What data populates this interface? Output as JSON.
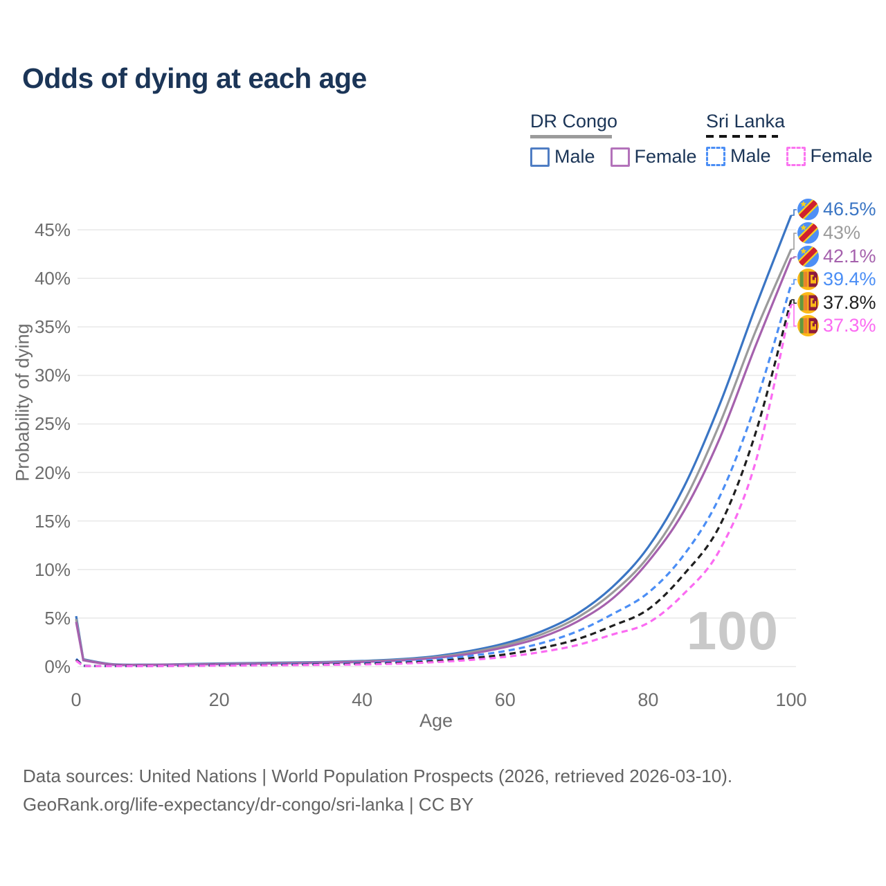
{
  "title": "Odds of dying at each age",
  "watermark_age": "100",
  "footer": {
    "line1": "Data sources: United Nations | World Population Prospects (2026, retrieved 2026-03-10).",
    "line2": "GeoRank.org/life-expectancy/dr-congo/sri-lanka | CC BY"
  },
  "legend": {
    "groups": [
      {
        "country": "DR Congo",
        "line_style": "solid",
        "underline_color": "#9b9b9b",
        "items": [
          {
            "label": "Male",
            "color": "#4f7dc3",
            "dashed": false
          },
          {
            "label": "Female",
            "color": "#b372ba",
            "dashed": false
          }
        ]
      },
      {
        "country": "Sri Lanka",
        "line_style": "dashed",
        "underline_color": "#141414",
        "items": [
          {
            "label": "Male",
            "color": "#4b8ef5",
            "dashed": true
          },
          {
            "label": "Female",
            "color": "#fb74f0",
            "dashed": true
          }
        ]
      }
    ]
  },
  "chart_data": {
    "type": "line",
    "title": "Odds of dying at each age",
    "xlabel": "Age",
    "ylabel": "Probability of dying",
    "xlim": [
      0,
      100
    ],
    "ylim": [
      0,
      47
    ],
    "x_ticks": [
      0,
      20,
      40,
      60,
      80,
      100
    ],
    "y_ticks": [
      "0%",
      "5%",
      "10%",
      "15%",
      "20%",
      "25%",
      "30%",
      "35%",
      "40%",
      "45%"
    ],
    "grid": "horizontal-only",
    "legend_position": "top-right",
    "x": [
      0,
      1,
      5,
      10,
      15,
      20,
      25,
      30,
      35,
      40,
      45,
      50,
      55,
      60,
      65,
      70,
      75,
      80,
      85,
      90,
      95,
      100
    ],
    "series": [
      {
        "name": "DR Congo Male",
        "flag": "cd",
        "color": "#3a75c4",
        "dashed": false,
        "end_label": "46.5%",
        "values": [
          5.2,
          0.75,
          0.25,
          0.2,
          0.25,
          0.32,
          0.37,
          0.42,
          0.48,
          0.58,
          0.75,
          1.05,
          1.6,
          2.4,
          3.6,
          5.4,
          8.2,
          12.3,
          18.5,
          27.0,
          37.0,
          46.5
        ]
      },
      {
        "name": "DR Congo (both sexes)",
        "flag": "cd",
        "color": "#9b9b9b",
        "dashed": false,
        "end_label": "43%",
        "values": [
          4.9,
          0.7,
          0.23,
          0.18,
          0.22,
          0.28,
          0.33,
          0.38,
          0.44,
          0.53,
          0.68,
          0.95,
          1.45,
          2.2,
          3.3,
          5.0,
          7.6,
          11.3,
          17.0,
          25.0,
          34.5,
          43.0
        ]
      },
      {
        "name": "DR Congo Female",
        "flag": "cd",
        "color": "#a561ad",
        "dashed": false,
        "end_label": "42.1%",
        "values": [
          4.6,
          0.65,
          0.21,
          0.17,
          0.2,
          0.25,
          0.29,
          0.34,
          0.4,
          0.48,
          0.62,
          0.87,
          1.3,
          2.0,
          3.0,
          4.6,
          7.0,
          10.8,
          16.0,
          23.5,
          33.0,
          42.1
        ]
      },
      {
        "name": "Sri Lanka Male",
        "flag": "lk",
        "color": "#4b8ef5",
        "dashed": true,
        "end_label": "39.4%",
        "values": [
          0.8,
          0.08,
          0.05,
          0.06,
          0.1,
          0.16,
          0.2,
          0.24,
          0.28,
          0.35,
          0.48,
          0.7,
          1.1,
          1.6,
          2.4,
          3.6,
          5.4,
          7.6,
          11.5,
          17.5,
          27.0,
          39.4
        ]
      },
      {
        "name": "Sri Lanka (both sexes)",
        "flag": "lk",
        "color": "#1f1f1f",
        "dashed": true,
        "end_label": "37.8%",
        "values": [
          0.7,
          0.07,
          0.05,
          0.06,
          0.08,
          0.13,
          0.16,
          0.19,
          0.23,
          0.28,
          0.38,
          0.55,
          0.85,
          1.25,
          1.9,
          2.8,
          4.2,
          5.9,
          9.5,
          14.5,
          24.0,
          37.8
        ]
      },
      {
        "name": "Sri Lanka Female",
        "flag": "lk",
        "color": "#fb6bf2",
        "dashed": true,
        "end_label": "37.3%",
        "values": [
          0.6,
          0.06,
          0.04,
          0.05,
          0.07,
          0.1,
          0.13,
          0.15,
          0.18,
          0.22,
          0.3,
          0.45,
          0.68,
          1.0,
          1.5,
          2.2,
          3.3,
          4.5,
          7.5,
          12.0,
          21.0,
          37.3
        ]
      }
    ]
  }
}
